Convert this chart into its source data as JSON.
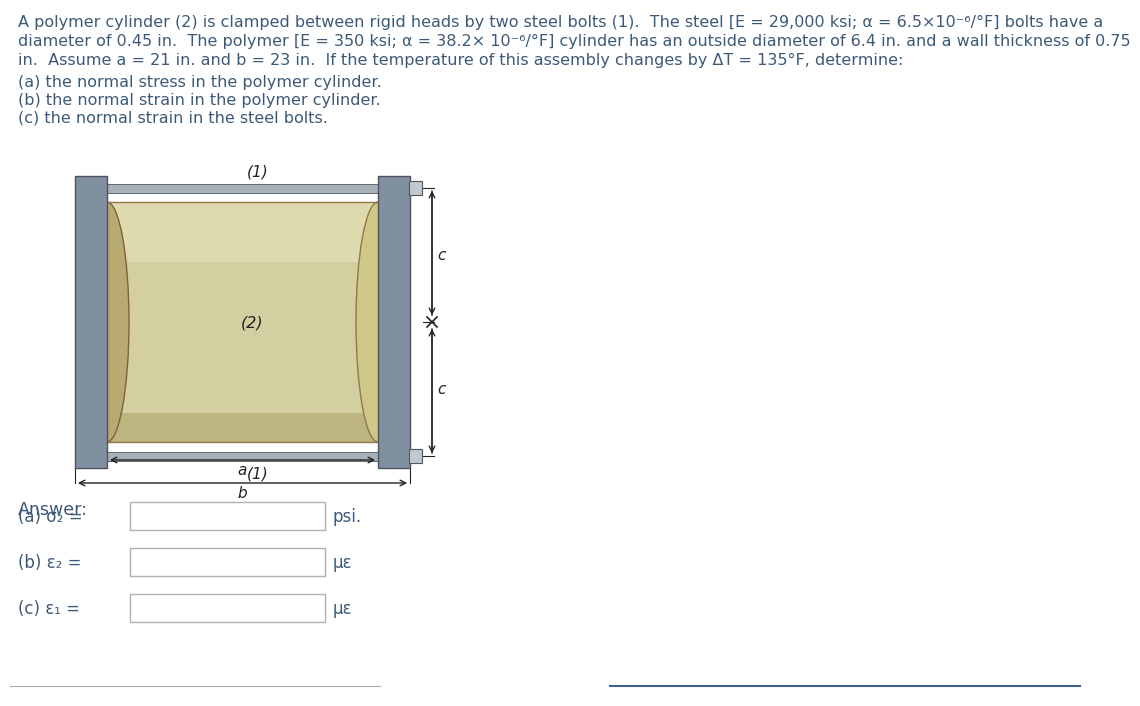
{
  "text_color": "#3c5a78",
  "dim_color": "#222222",
  "bg_color": "#ffffff",
  "plate_color": "#8090a0",
  "plate_edge": "#505060",
  "cyl_fill": "#d4cfa0",
  "cyl_dark": "#a89c60",
  "cyl_highlight": "#e8e2b8",
  "bolt_color": "#a8b0b8",
  "bolt_edge": "#606870",
  "nut_color": "#c0c8d0",
  "nut_edge": "#505860",
  "line1": "A polymer cylinder (2) is clamped between rigid heads by two steel bolts (1).  The steel [E = 29,000 ksi; α = 6.5×10⁻⁶/°F] bolts have a",
  "line2": "diameter of 0.45 in.  The polymer [E = 350 ksi; α = 38.2× 10⁻⁶/°F] cylinder has an outside diameter of 6.4 in. and a wall thickness of 0.75",
  "line3": "in.  Assume a = 21 in. and b = 23 in.  If the temperature of this assembly changes by ΔT = 135°F, determine:",
  "item_a": "(a) the normal stress in the polymer cylinder.",
  "item_b": "(b) the normal strain in the polymer cylinder.",
  "item_c": "(c) the normal strain in the steel bolts.",
  "ans_label": "Answer:",
  "label_a": "(a) σ₂ =",
  "label_b": "(b) ε₂ =",
  "label_c": "(c) ε₁ =",
  "unit_a": "psi.",
  "unit_b": "με",
  "unit_c": "με"
}
